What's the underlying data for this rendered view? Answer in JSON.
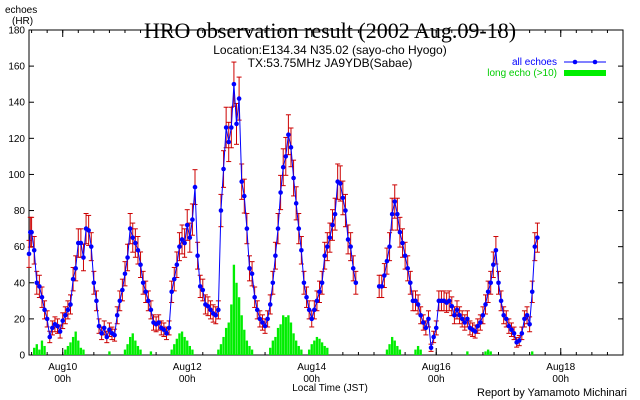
{
  "chart_data": {
    "type": "line",
    "title": "HRO observation result (2002 Aug.09-18)",
    "subtitle_lines": [
      "Location:E134.34 N35.02 (sayo-cho Hyogo)",
      "TX:53.75MHz JA9YDB(Sabae)"
    ],
    "ylabel": "echoes",
    "yunit": "(HR)",
    "xlabel": "Local Time (JST)",
    "credit": "Report by Yamamoto Michinari",
    "ylim": [
      0,
      180
    ],
    "yticks": [
      0,
      20,
      40,
      60,
      80,
      100,
      120,
      140,
      160,
      180
    ],
    "x_unit": "hours from Aug09 00h (JST)",
    "xlim": [
      11,
      240
    ],
    "x_ticks_major": [
      {
        "x": 24,
        "label": "Aug10",
        "sub": "00h"
      },
      {
        "x": 72,
        "label": "Aug12",
        "sub": "00h"
      },
      {
        "x": 120,
        "label": "Aug14",
        "sub": "00h"
      },
      {
        "x": 168,
        "label": "Aug16",
        "sub": "00h"
      },
      {
        "x": 216,
        "label": "Aug18",
        "sub": "00h"
      }
    ],
    "x_minor_step_hours": 6,
    "grid": false,
    "legend_position": "top-right",
    "series": [
      {
        "name": "all echoes",
        "color": "#0000ff",
        "errorbar_color": "#cc0000",
        "points": [
          [
            11,
            56
          ],
          [
            11.5,
            68
          ],
          [
            12,
            68
          ],
          [
            13,
            58
          ],
          [
            14,
            40
          ],
          [
            15,
            38
          ],
          [
            16,
            32
          ],
          [
            17,
            25
          ],
          [
            18,
            20
          ],
          [
            19,
            10
          ],
          [
            20,
            15
          ],
          [
            21,
            17
          ],
          [
            22,
            16
          ],
          [
            23,
            13
          ],
          [
            24,
            19
          ],
          [
            25,
            22
          ],
          [
            26,
            25
          ],
          [
            27,
            28
          ],
          [
            28,
            42
          ],
          [
            29,
            48
          ],
          [
            30,
            62
          ],
          [
            31,
            62
          ],
          [
            32,
            54
          ],
          [
            33,
            70
          ],
          [
            34,
            69
          ],
          [
            35,
            60
          ],
          [
            36,
            40
          ],
          [
            37,
            30
          ],
          [
            38,
            16
          ],
          [
            39,
            12
          ],
          [
            40,
            15
          ],
          [
            41,
            10
          ],
          [
            42,
            14
          ],
          [
            43,
            12
          ],
          [
            44,
            11
          ],
          [
            45,
            22
          ],
          [
            46,
            30
          ],
          [
            47,
            36
          ],
          [
            48,
            45
          ],
          [
            49,
            54
          ],
          [
            50,
            70
          ],
          [
            51,
            65
          ],
          [
            52,
            62
          ],
          [
            53,
            58
          ],
          [
            54,
            50
          ],
          [
            55,
            40
          ],
          [
            56,
            35
          ],
          [
            57,
            30
          ],
          [
            58,
            25
          ],
          [
            59,
            18
          ],
          [
            60,
            17
          ],
          [
            61,
            18
          ],
          [
            62,
            15
          ],
          [
            63,
            14
          ],
          [
            64,
            12
          ],
          [
            65,
            15
          ],
          [
            66,
            35
          ],
          [
            67,
            42
          ],
          [
            68,
            50
          ],
          [
            69,
            60
          ],
          [
            70,
            64
          ],
          [
            71,
            62
          ],
          [
            72,
            72
          ],
          [
            73,
            65
          ],
          [
            74,
            75
          ],
          [
            75,
            93
          ],
          [
            76,
            55
          ],
          [
            77,
            38
          ],
          [
            78,
            36
          ],
          [
            79,
            28
          ],
          [
            80,
            27
          ],
          [
            81,
            25
          ],
          [
            82,
            23
          ],
          [
            83,
            22
          ],
          [
            84,
            25
          ],
          [
            85,
            80
          ],
          [
            86,
            103
          ],
          [
            87,
            126
          ],
          [
            88,
            118
          ],
          [
            89,
            126
          ],
          [
            90,
            150
          ],
          [
            91,
            128
          ],
          [
            92,
            142
          ],
          [
            93,
            96
          ],
          [
            94,
            88
          ],
          [
            95,
            70
          ],
          [
            96,
            48
          ],
          [
            97,
            45
          ],
          [
            98,
            32
          ],
          [
            99,
            25
          ],
          [
            100,
            20
          ],
          [
            101,
            18
          ],
          [
            102,
            16
          ],
          [
            103,
            20
          ],
          [
            104,
            28
          ],
          [
            105,
            40
          ],
          [
            106,
            55
          ],
          [
            107,
            70
          ],
          [
            108,
            90
          ],
          [
            109,
            104
          ],
          [
            110,
            110
          ],
          [
            111,
            122
          ],
          [
            112,
            115
          ],
          [
            113,
            98
          ],
          [
            114,
            84
          ],
          [
            115,
            70
          ],
          [
            116,
            58
          ],
          [
            117,
            40
          ],
          [
            118,
            32
          ],
          [
            119,
            25
          ],
          [
            120,
            20
          ],
          [
            121,
            25
          ],
          [
            122,
            30
          ],
          [
            123,
            35
          ],
          [
            124,
            40
          ],
          [
            125,
            55
          ],
          [
            126,
            60
          ],
          [
            127,
            65
          ],
          [
            128,
            72
          ],
          [
            129,
            78
          ],
          [
            130,
            96
          ],
          [
            131,
            95
          ],
          [
            132,
            87
          ],
          [
            133,
            80
          ],
          [
            134,
            64
          ],
          [
            135,
            60
          ],
          [
            136,
            48
          ],
          [
            137,
            40
          ],
          [
            146,
            38
          ],
          [
            147,
            38
          ],
          [
            148,
            44
          ],
          [
            149,
            52
          ],
          [
            150,
            60
          ],
          [
            151,
            78
          ],
          [
            152,
            85
          ],
          [
            153,
            78
          ],
          [
            154,
            68
          ],
          [
            155,
            62
          ],
          [
            156,
            55
          ],
          [
            157,
            48
          ],
          [
            158,
            40
          ],
          [
            159,
            30
          ],
          [
            160,
            30
          ],
          [
            161,
            28
          ],
          [
            162,
            22
          ],
          [
            163,
            18
          ],
          [
            164,
            15
          ],
          [
            165,
            20
          ],
          [
            166,
            4
          ],
          [
            167,
            10
          ],
          [
            168,
            15
          ],
          [
            169,
            30
          ],
          [
            170,
            30
          ],
          [
            171,
            30
          ],
          [
            172,
            29
          ],
          [
            173,
            30
          ],
          [
            174,
            27
          ],
          [
            175,
            22
          ],
          [
            176,
            25
          ],
          [
            177,
            22
          ],
          [
            178,
            20
          ],
          [
            179,
            18
          ],
          [
            180,
            20
          ],
          [
            181,
            15
          ],
          [
            182,
            14
          ],
          [
            183,
            13
          ],
          [
            184,
            16
          ],
          [
            185,
            18
          ],
          [
            186,
            22
          ],
          [
            187,
            28
          ],
          [
            188,
            35
          ],
          [
            189,
            40
          ],
          [
            190,
            50
          ],
          [
            191,
            58
          ],
          [
            192,
            40
          ],
          [
            193,
            30
          ],
          [
            194,
            22
          ],
          [
            195,
            20
          ],
          [
            196,
            16
          ],
          [
            197,
            14
          ],
          [
            198,
            12
          ],
          [
            199,
            7
          ],
          [
            200,
            8
          ],
          [
            201,
            12
          ],
          [
            202,
            20
          ],
          [
            203,
            22
          ],
          [
            204,
            17
          ],
          [
            205,
            35
          ],
          [
            206,
            60
          ],
          [
            207,
            65
          ]
        ]
      },
      {
        "name": "long echo (>10)",
        "color": "#00ee00",
        "bars_note": "green columns along the baseline",
        "points": [
          [
            13,
            4
          ],
          [
            14,
            6
          ],
          [
            15,
            3
          ],
          [
            16,
            8
          ],
          [
            17,
            5
          ],
          [
            25,
            3
          ],
          [
            26,
            5
          ],
          [
            27,
            7
          ],
          [
            28,
            10
          ],
          [
            29,
            13
          ],
          [
            30,
            8
          ],
          [
            31,
            4
          ],
          [
            32,
            3
          ],
          [
            42,
            2
          ],
          [
            48,
            3
          ],
          [
            49,
            6
          ],
          [
            50,
            10
          ],
          [
            51,
            12
          ],
          [
            52,
            8
          ],
          [
            53,
            5
          ],
          [
            54,
            3
          ],
          [
            58,
            2
          ],
          [
            66,
            3
          ],
          [
            67,
            6
          ],
          [
            68,
            9
          ],
          [
            69,
            12
          ],
          [
            70,
            13
          ],
          [
            71,
            10
          ],
          [
            72,
            8
          ],
          [
            73,
            5
          ],
          [
            74,
            3
          ],
          [
            84,
            3
          ],
          [
            85,
            6
          ],
          [
            86,
            10
          ],
          [
            87,
            15
          ],
          [
            88,
            18
          ],
          [
            89,
            28
          ],
          [
            90,
            50
          ],
          [
            91,
            40
          ],
          [
            92,
            32
          ],
          [
            93,
            22
          ],
          [
            94,
            14
          ],
          [
            95,
            8
          ],
          [
            96,
            5
          ],
          [
            97,
            3
          ],
          [
            104,
            4
          ],
          [
            105,
            8
          ],
          [
            106,
            10
          ],
          [
            107,
            15
          ],
          [
            108,
            17
          ],
          [
            109,
            22
          ],
          [
            110,
            21
          ],
          [
            111,
            22
          ],
          [
            112,
            18
          ],
          [
            113,
            12
          ],
          [
            114,
            8
          ],
          [
            115,
            5
          ],
          [
            116,
            3
          ],
          [
            119,
            3
          ],
          [
            120,
            6
          ],
          [
            121,
            8
          ],
          [
            122,
            10
          ],
          [
            123,
            9
          ],
          [
            124,
            7
          ],
          [
            125,
            5
          ],
          [
            126,
            4
          ],
          [
            149,
            3
          ],
          [
            150,
            6
          ],
          [
            151,
            10
          ],
          [
            152,
            8
          ],
          [
            153,
            5
          ],
          [
            154,
            3
          ],
          [
            160,
            3
          ],
          [
            161,
            5
          ],
          [
            162,
            3
          ],
          [
            180,
            2
          ],
          [
            187,
            2
          ],
          [
            188,
            3
          ],
          [
            189,
            2
          ],
          [
            205,
            2
          ]
        ]
      }
    ]
  }
}
